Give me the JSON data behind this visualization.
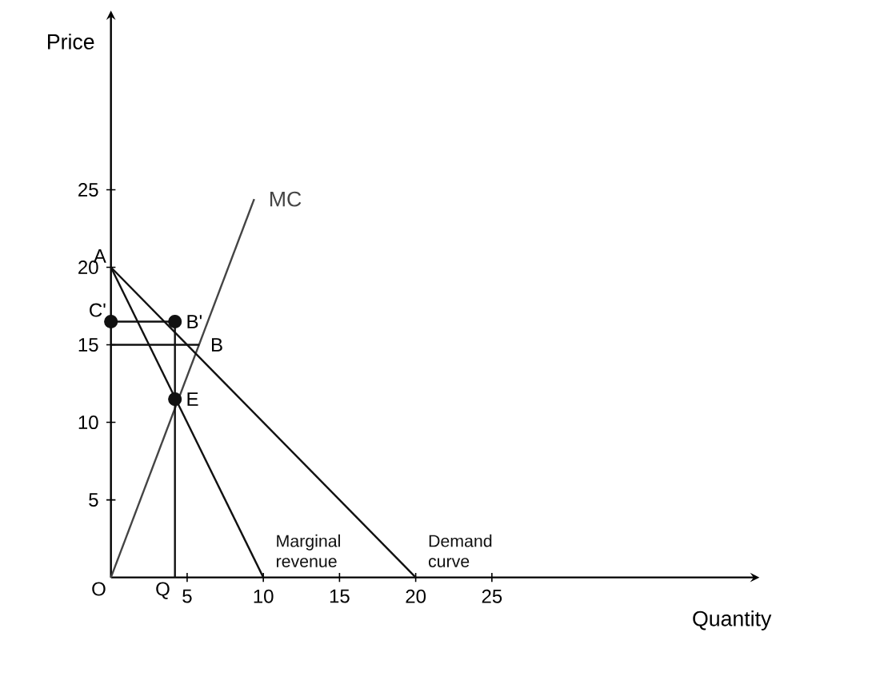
{
  "chart_data": {
    "type": "line",
    "xlabel": "Quantity",
    "ylabel": "Price",
    "xlim": [
      0,
      42
    ],
    "ylim": [
      0,
      36
    ],
    "xticks": [
      5,
      10,
      15,
      20,
      25
    ],
    "yticks": [
      5,
      10,
      15,
      20,
      25
    ],
    "series": [
      {
        "name": "MC",
        "color": "#444444",
        "x": [
          0,
          9.4
        ],
        "values": [
          0,
          24.4
        ]
      },
      {
        "name": "Marginal revenue",
        "color": "#111111",
        "x": [
          0,
          10
        ],
        "values": [
          20,
          0
        ]
      },
      {
        "name": "Demand curve",
        "color": "#111111",
        "x": [
          0,
          20
        ],
        "values": [
          20,
          0
        ]
      },
      {
        "color": "#111111",
        "x": [
          0,
          4.2
        ],
        "values": [
          16.5,
          16.5
        ]
      },
      {
        "color": "#111111",
        "x": [
          0,
          5.8
        ],
        "values": [
          15,
          15
        ]
      },
      {
        "color": "#111111",
        "x": [
          4.2,
          4.2
        ],
        "values": [
          0,
          16.5
        ]
      },
      {
        "type": "scatter",
        "color": "#111111",
        "x": [
          0,
          4.2,
          4.2
        ],
        "values": [
          16.5,
          16.5,
          11.5
        ]
      }
    ],
    "annotations": [
      {
        "text": "A",
        "x": 0,
        "y": 20
      },
      {
        "text": "C'",
        "x": 0,
        "y": 16.5
      },
      {
        "text": "B'",
        "x": 4.2,
        "y": 16.5
      },
      {
        "text": "B",
        "x": 5.8,
        "y": 15
      },
      {
        "text": "E",
        "x": 4.2,
        "y": 11.5
      },
      {
        "text": "O",
        "x": 0,
        "y": 0
      },
      {
        "text": "Q",
        "x": 4.2,
        "y": 0
      }
    ],
    "legend": false
  }
}
